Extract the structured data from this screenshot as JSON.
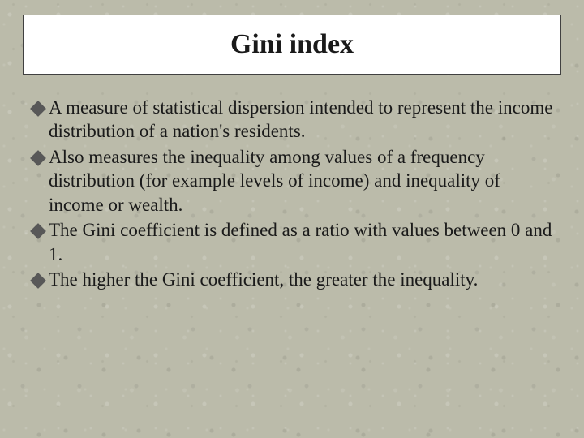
{
  "title": "Gini index",
  "bullets": [
    "A measure of statistical dispersion intended to represent the income distribution of a nation's residents.",
    "Also measures the inequality among values of a frequency distribution (for example levels of income) and inequality of income or wealth.",
    "The Gini coefficient is defined as a ratio with values between 0 and 1.",
    "The higher the Gini coefficient, the greater the inequality."
  ],
  "style": {
    "background_color": "#b8b8a8",
    "title_box_bg": "#ffffff",
    "title_box_border": "#404040",
    "title_fontsize": 34,
    "bullet_fontsize": 23,
    "bullet_color": "#585858",
    "text_color": "#1a1a1a",
    "font_family": "Georgia, serif"
  }
}
